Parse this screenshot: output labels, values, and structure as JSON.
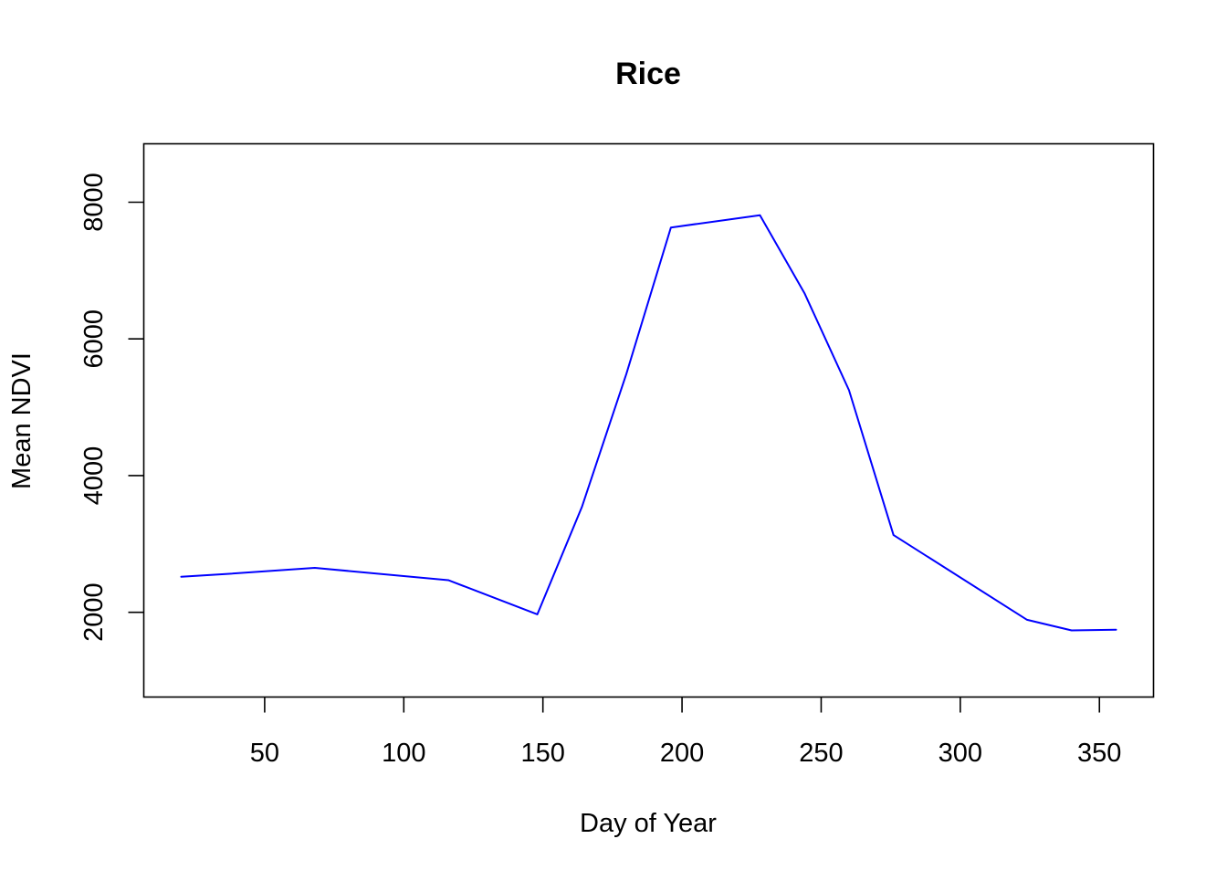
{
  "chart_data": {
    "type": "line",
    "title": "Rice",
    "xlabel": "Day of Year",
    "ylabel": "Mean NDVI",
    "xlim": [
      6.56,
      369.44
    ],
    "ylim": [
      760,
      8855
    ],
    "x_ticks": [
      50,
      100,
      150,
      200,
      250,
      300,
      350
    ],
    "y_ticks": [
      2000,
      4000,
      6000,
      8000
    ],
    "grid": false,
    "legend": "none",
    "series": [
      {
        "color": "#0000FF",
        "x": [
          20,
          36,
          68,
          116,
          148,
          164,
          180,
          196,
          228,
          244,
          260,
          276,
          324,
          340,
          356
        ],
        "y": [
          2520,
          2560,
          2650,
          2470,
          1970,
          3540,
          5490,
          7630,
          7810,
          6670,
          5250,
          3130,
          1890,
          1735,
          1745
        ]
      }
    ]
  }
}
